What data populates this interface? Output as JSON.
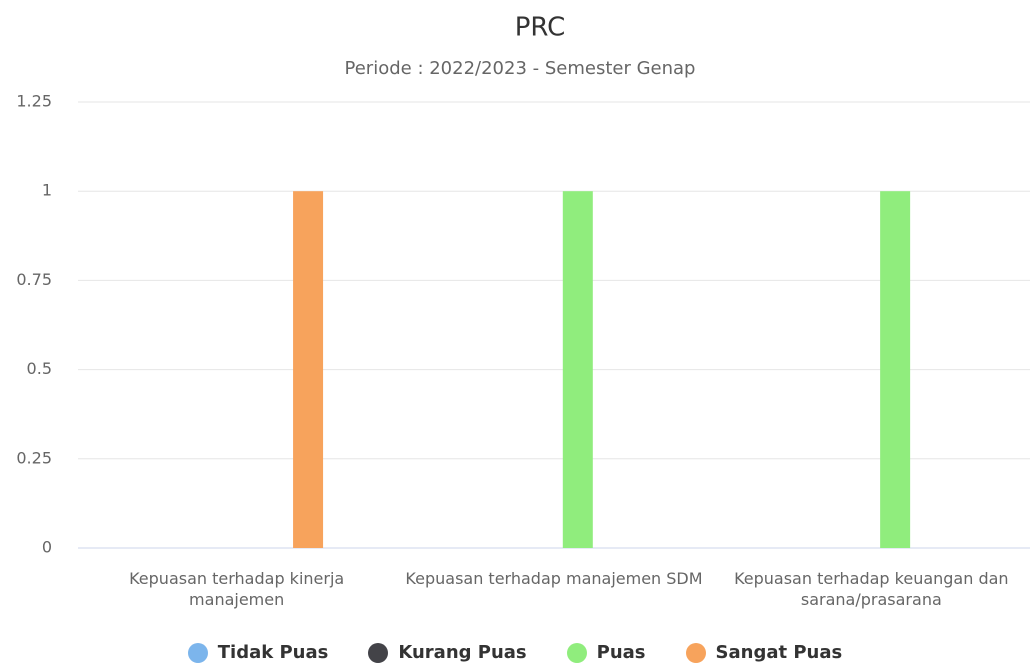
{
  "chart_data": {
    "type": "bar",
    "title": "PRC",
    "subtitle": "Periode : 2022/2023 - Semester Genap",
    "categories": [
      "Kepuasan terhadap kinerja manajemen",
      "Kepuasan terhadap manajemen SDM",
      "Kepuasan terhadap keuangan dan sarana/prasarana"
    ],
    "series": [
      {
        "name": "Tidak Puas",
        "color": "#7cb5ec",
        "values": [
          0,
          0,
          0
        ]
      },
      {
        "name": "Kurang Puas",
        "color": "#434348",
        "values": [
          0,
          0,
          0
        ]
      },
      {
        "name": "Puas",
        "color": "#90ed7d",
        "values": [
          0,
          1,
          1
        ]
      },
      {
        "name": "Sangat Puas",
        "color": "#f7a35c",
        "values": [
          1,
          0,
          0
        ]
      }
    ],
    "ylim": [
      0,
      1.25
    ],
    "yticks": [
      0,
      0.25,
      0.5,
      0.75,
      1,
      1.25
    ],
    "grid": true,
    "legend": "bottom"
  }
}
